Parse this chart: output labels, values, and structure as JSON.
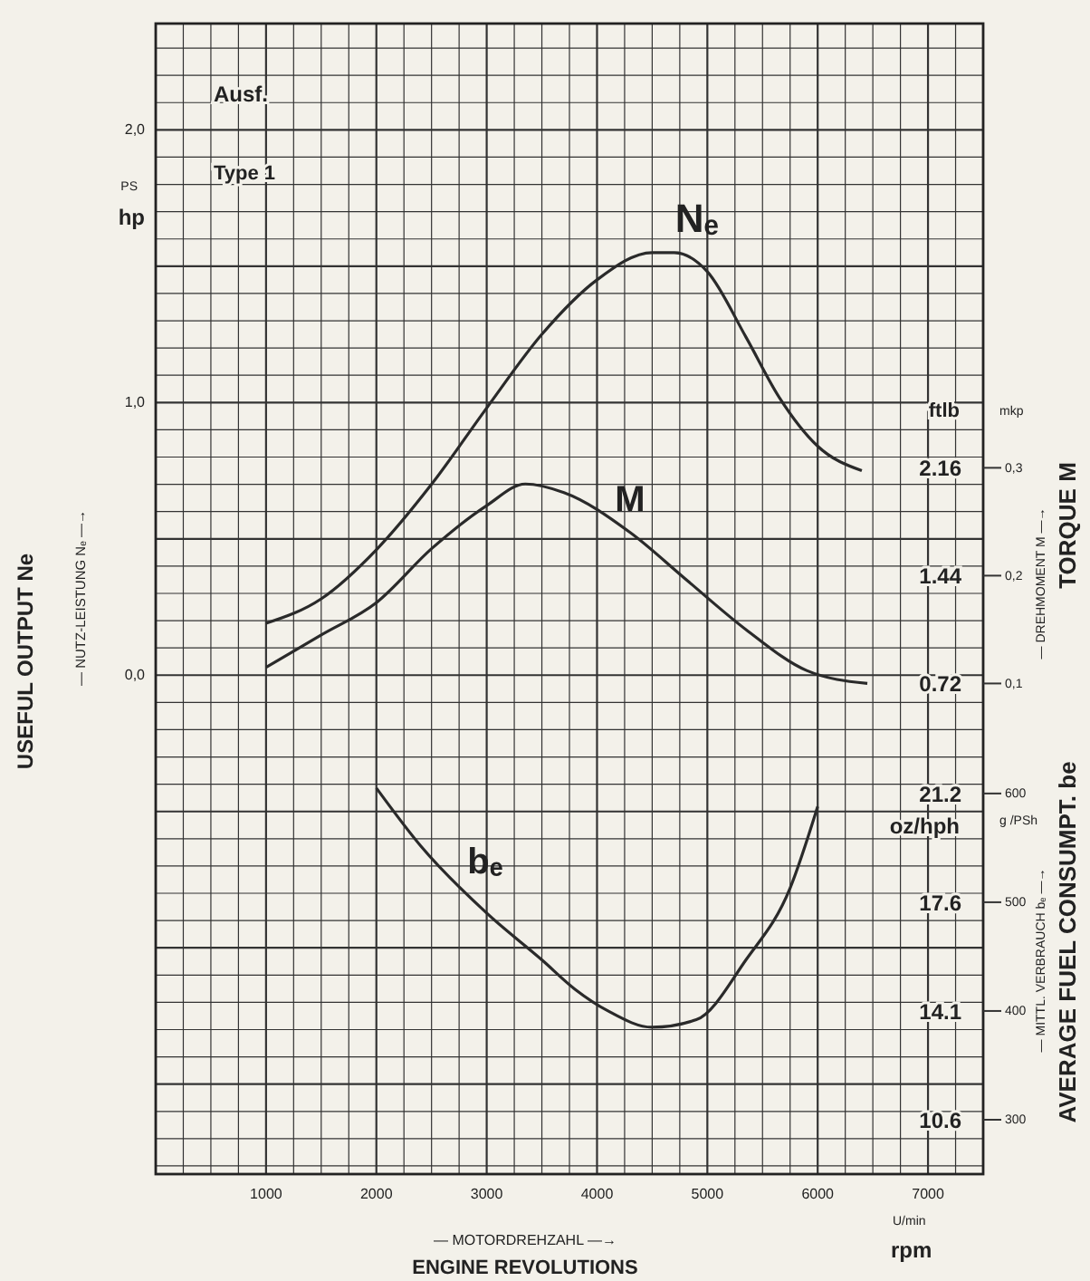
{
  "chart_data": {
    "type": "line",
    "xlabel": "ENGINE REVOLUTIONS",
    "ylabel": "USEFUL OUTPUT Ne",
    "y2label": "TORQUE M",
    "y3label": "AVERAGE FUEL CONSUMPT. be",
    "annotations": [
      "Ausf.",
      "Type 1",
      "PS",
      "hp",
      "— NUTZ-LEISTUNG Nₑ —→",
      "ftlb",
      "mkp",
      "— DREHMOMENT M —→",
      "oz/hph",
      "g /PSh",
      "— MITTL. VERBRAUCH bₑ —→",
      "U/min",
      "— MOTORDREHZAHL —→",
      "rpm",
      "2.16",
      "1.44",
      "0.72",
      "21.2",
      "17.6",
      "14.1",
      "10.6"
    ],
    "xlim": [
      0,
      7500
    ],
    "xticks": [
      1000,
      2000,
      3000,
      4000,
      5000,
      6000,
      7000
    ],
    "ylim": [
      -1.83,
      2.39
    ],
    "yticks": [
      {
        "value": 2,
        "label": "2,0"
      },
      {
        "value": 1,
        "label": "1,0"
      },
      {
        "value": 0,
        "label": "0,0"
      }
    ],
    "y2lim": [
      -0.355,
      0.712
    ],
    "y2ticks": [
      {
        "value": 0.3,
        "label": "0,3"
      },
      {
        "value": 0.2,
        "label": "0,2"
      },
      {
        "value": 0.1,
        "label": "0,1"
      }
    ],
    "y3lim": [
      250,
      1308
    ],
    "y3ticks": [
      600,
      500,
      400,
      300
    ],
    "grid": true,
    "legend": false,
    "marker": "none",
    "line_style": "solid",
    "series": [
      {
        "name": "Nₑ",
        "color": "#2a2a2a",
        "axis": "y",
        "x": [
          1000,
          1500,
          2000,
          2500,
          3000,
          3500,
          4000,
          4500,
          4700,
          5000,
          5350,
          5650,
          6000,
          6400
        ],
        "values": [
          0.19,
          0.28,
          0.46,
          0.7,
          0.98,
          1.25,
          1.45,
          1.55,
          1.55,
          1.48,
          1.24,
          1.02,
          0.84,
          0.75
        ]
      },
      {
        "name": "M",
        "color": "#2a2a2a",
        "axis": "y2",
        "x": [
          1000,
          1500,
          2000,
          2500,
          3000,
          3350,
          3700,
          4300,
          4800,
          5350,
          5900,
          6450
        ],
        "values": [
          0.115,
          0.145,
          0.175,
          0.225,
          0.265,
          0.285,
          0.277,
          0.24,
          0.197,
          0.15,
          0.112,
          0.1
        ]
      },
      {
        "name": "bₑ",
        "color": "#2a2a2a",
        "axis": "y3",
        "x": [
          2000,
          2400,
          3000,
          3500,
          3800,
          4100,
          4500,
          4900,
          5350,
          5750,
          6000
        ],
        "values": [
          605,
          552,
          490,
          447,
          420,
          400,
          385,
          392,
          447,
          513,
          588
        ]
      }
    ]
  }
}
